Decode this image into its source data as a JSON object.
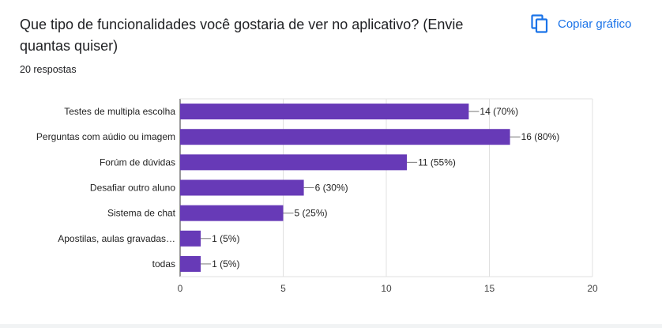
{
  "header": {
    "question": "Que tipo de funcionalidades você gostaria de ver no aplicativo? (Envie quantas quiser)",
    "responses": "20 respostas",
    "copy_label": "Copiar gráfico",
    "copy_icon": "copy-icon"
  },
  "colors": {
    "bar": "#673ab7",
    "accent": "#1a73e8",
    "grid": "#e0e0e0"
  },
  "chart_data": {
    "type": "bar",
    "orientation": "horizontal",
    "categories": [
      "Testes de multipla escolha",
      "Perguntas com aúdio ou imagem",
      "Forúm de dúvidas",
      "Desafiar outro aluno",
      "Sistema de chat",
      "Apostilas, aulas gravadas…",
      "todas"
    ],
    "values": [
      14,
      16,
      11,
      6,
      5,
      1,
      1
    ],
    "data_labels": [
      "14 (70%)",
      "16 (80%)",
      "11 (55%)",
      "6 (30%)",
      "5 (25%)",
      "1 (5%)",
      "1 (5%)"
    ],
    "xlim": [
      0,
      20
    ],
    "xticks": [
      0,
      5,
      10,
      15,
      20
    ],
    "title": "",
    "xlabel": "",
    "ylabel": "",
    "grid": true
  }
}
